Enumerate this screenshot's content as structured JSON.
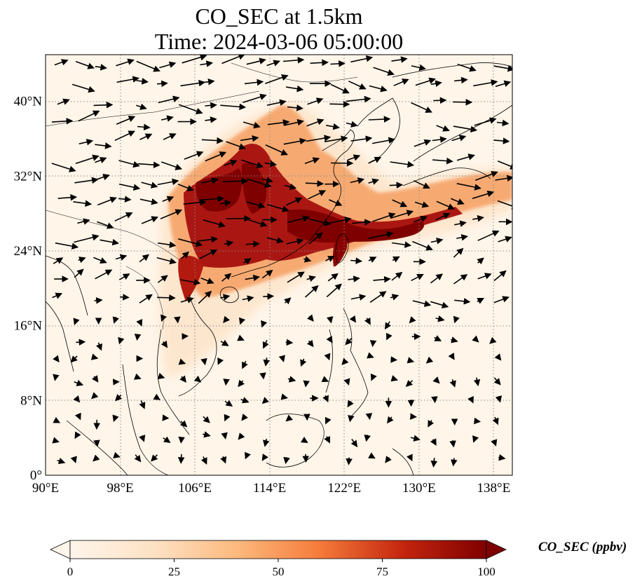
{
  "title": {
    "line1": "CO_SEC at 1.5km",
    "line2": "Time: 2024-03-06 05:00:00"
  },
  "map": {
    "lon_range": [
      90,
      140
    ],
    "lat_range": [
      0,
      45
    ],
    "x_ticks": [
      "90°E",
      "98°E",
      "106°E",
      "114°E",
      "122°E",
      "130°E",
      "138°E"
    ],
    "x_tick_values": [
      90,
      98,
      106,
      114,
      122,
      130,
      138
    ],
    "y_ticks": [
      "0°",
      "8°N",
      "16°N",
      "24°N",
      "32°N",
      "40°N"
    ],
    "y_tick_values": [
      0,
      8,
      16,
      24,
      32,
      40
    ],
    "gridlines": true,
    "background_color": "#fff5e9"
  },
  "colorbar": {
    "label": "CO_SEC (ppbv)",
    "ticks": [
      "0",
      "25",
      "50",
      "75",
      "100"
    ],
    "range": [
      0,
      100
    ],
    "colormap": [
      "#fff5eb",
      "#fdd9b4",
      "#fda762",
      "#e8590c",
      "#b0160b",
      "#7f0000"
    ],
    "extend": "both"
  },
  "colors": {
    "low": "#fff5eb",
    "mid": "#f4a460",
    "high": "#7f0000",
    "coast": "#000000",
    "grid": "#777777",
    "wind_arrow": "#000000"
  },
  "legend_icons": [
    "wind-arrow-icon"
  ]
}
